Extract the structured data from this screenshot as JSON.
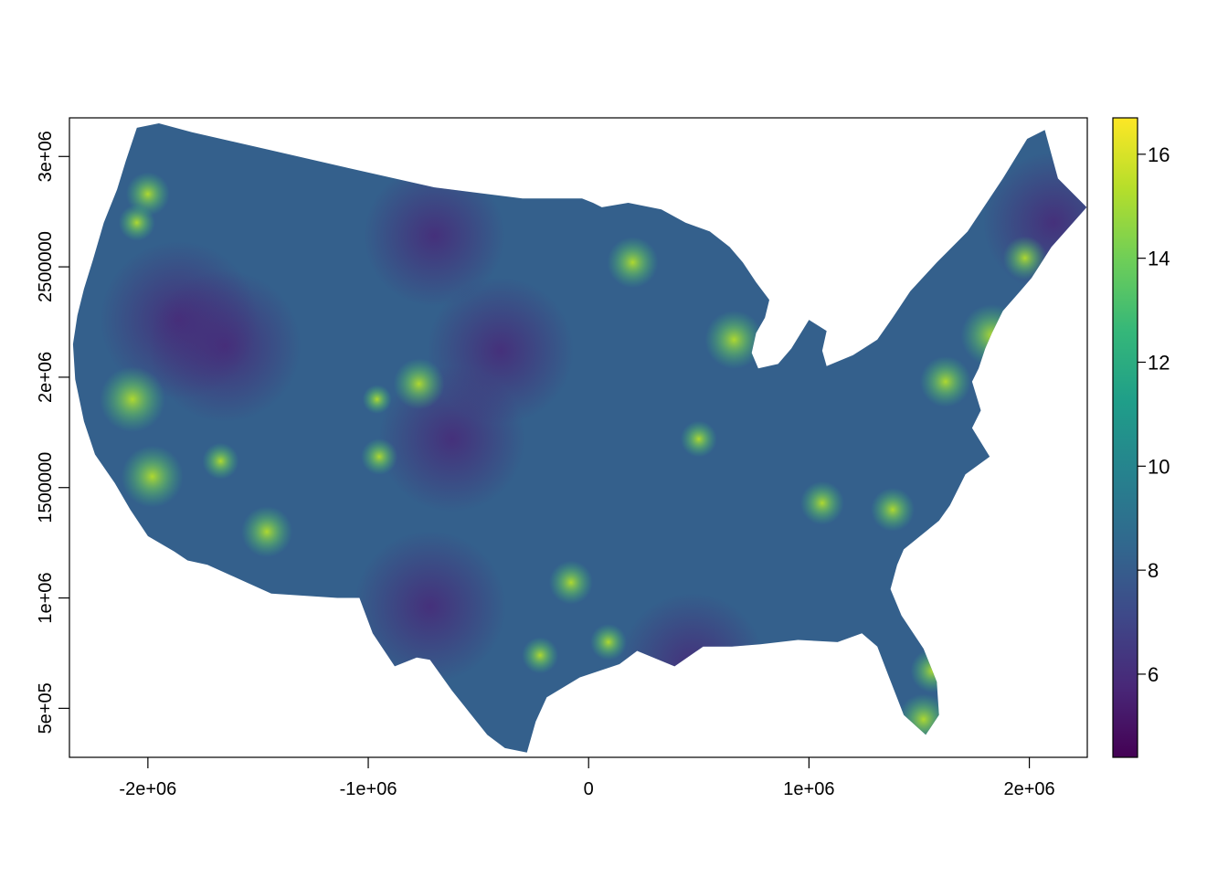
{
  "map": {
    "type": "raster",
    "extent": {
      "x": [
        -2356000,
        2263000
      ],
      "y": [
        278000,
        3175000
      ]
    },
    "x_ticks": [
      {
        "value": -2000000,
        "label": "-2e+06"
      },
      {
        "value": -1000000,
        "label": "-1e+06"
      },
      {
        "value": 0,
        "label": "0"
      },
      {
        "value": 1000000,
        "label": "1e+06"
      },
      {
        "value": 2000000,
        "label": "2e+06"
      }
    ],
    "y_ticks": [
      {
        "value": 500000,
        "label": "5e+05"
      },
      {
        "value": 1000000,
        "label": "1e+06"
      },
      {
        "value": 1500000,
        "label": "1500000"
      },
      {
        "value": 2000000,
        "label": "2e+06"
      },
      {
        "value": 2500000,
        "label": "2500000"
      },
      {
        "value": 3000000,
        "label": "3e+06"
      }
    ],
    "boundary_km": [
      [
        -2050,
        3130
      ],
      [
        -1950,
        3150
      ],
      [
        -1800,
        3110
      ],
      [
        -1450,
        3030
      ],
      [
        -1100,
        2950
      ],
      [
        -700,
        2860
      ],
      [
        -300,
        2810
      ],
      [
        -30,
        2810
      ],
      [
        20,
        2790
      ],
      [
        60,
        2770
      ],
      [
        180,
        2790
      ],
      [
        330,
        2760
      ],
      [
        440,
        2700
      ],
      [
        550,
        2660
      ],
      [
        640,
        2590
      ],
      [
        700,
        2520
      ],
      [
        760,
        2430
      ],
      [
        820,
        2350
      ],
      [
        800,
        2270
      ],
      [
        760,
        2200
      ],
      [
        740,
        2110
      ],
      [
        770,
        2040
      ],
      [
        860,
        2060
      ],
      [
        920,
        2130
      ],
      [
        1000,
        2260
      ],
      [
        1080,
        2210
      ],
      [
        1060,
        2120
      ],
      [
        1080,
        2050
      ],
      [
        1200,
        2100
      ],
      [
        1310,
        2170
      ],
      [
        1380,
        2270
      ],
      [
        1460,
        2390
      ],
      [
        1580,
        2520
      ],
      [
        1620,
        2560
      ],
      [
        1720,
        2660
      ],
      [
        1800,
        2780
      ],
      [
        1880,
        2900
      ],
      [
        1990,
        3080
      ],
      [
        2070,
        3120
      ],
      [
        2130,
        2900
      ],
      [
        2260,
        2770
      ],
      [
        2100,
        2590
      ],
      [
        2010,
        2450
      ],
      [
        1950,
        2380
      ],
      [
        1880,
        2300
      ],
      [
        1830,
        2200
      ],
      [
        1800,
        2130
      ],
      [
        1770,
        2040
      ],
      [
        1740,
        1980
      ],
      [
        1780,
        1850
      ],
      [
        1740,
        1770
      ],
      [
        1820,
        1640
      ],
      [
        1710,
        1560
      ],
      [
        1640,
        1420
      ],
      [
        1590,
        1350
      ],
      [
        1430,
        1220
      ],
      [
        1400,
        1150
      ],
      [
        1370,
        1040
      ],
      [
        1420,
        920
      ],
      [
        1520,
        770
      ],
      [
        1580,
        620
      ],
      [
        1590,
        470
      ],
      [
        1530,
        380
      ],
      [
        1430,
        470
      ],
      [
        1360,
        650
      ],
      [
        1310,
        780
      ],
      [
        1240,
        840
      ],
      [
        1130,
        800
      ],
      [
        950,
        810
      ],
      [
        780,
        790
      ],
      [
        650,
        780
      ],
      [
        520,
        780
      ],
      [
        390,
        690
      ],
      [
        220,
        760
      ],
      [
        140,
        700
      ],
      [
        -40,
        640
      ],
      [
        -190,
        550
      ],
      [
        -240,
        440
      ],
      [
        -280,
        300
      ],
      [
        -380,
        320
      ],
      [
        -460,
        380
      ],
      [
        -540,
        480
      ],
      [
        -620,
        580
      ],
      [
        -720,
        720
      ],
      [
        -780,
        730
      ],
      [
        -880,
        690
      ],
      [
        -980,
        840
      ],
      [
        -1040,
        1000
      ],
      [
        -1140,
        1000
      ],
      [
        -1440,
        1020
      ],
      [
        -1730,
        1150
      ],
      [
        -1820,
        1170
      ],
      [
        -1880,
        1210
      ],
      [
        -2000,
        1280
      ],
      [
        -2080,
        1400
      ],
      [
        -2150,
        1520
      ],
      [
        -2240,
        1650
      ],
      [
        -2290,
        1800
      ],
      [
        -2330,
        1990
      ],
      [
        -2340,
        2150
      ],
      [
        -2320,
        2280
      ],
      [
        -2290,
        2400
      ],
      [
        -2250,
        2530
      ],
      [
        -2200,
        2700
      ],
      [
        -2140,
        2850
      ],
      [
        -2100,
        2980
      ]
    ],
    "hotspots": [
      {
        "x": -2070,
        "y": 1900,
        "value": 16
      },
      {
        "x": -1980,
        "y": 1550,
        "value": 15.5
      },
      {
        "x": -1460,
        "y": 1300,
        "value": 14
      },
      {
        "x": -1670,
        "y": 1620,
        "value": 12
      },
      {
        "x": -2000,
        "y": 2830,
        "value": 13
      },
      {
        "x": -2050,
        "y": 2700,
        "value": 12
      },
      {
        "x": -770,
        "y": 1970,
        "value": 14
      },
      {
        "x": -950,
        "y": 1640,
        "value": 12
      },
      {
        "x": -960,
        "y": 1900,
        "value": 11
      },
      {
        "x": 200,
        "y": 2520,
        "value": 14
      },
      {
        "x": 660,
        "y": 2170,
        "value": 15
      },
      {
        "x": 1830,
        "y": 2190,
        "value": 15.5
      },
      {
        "x": 1620,
        "y": 1980,
        "value": 14
      },
      {
        "x": 1980,
        "y": 2540,
        "value": 13
      },
      {
        "x": -80,
        "y": 1070,
        "value": 13
      },
      {
        "x": -220,
        "y": 740,
        "value": 12
      },
      {
        "x": 90,
        "y": 800,
        "value": 12
      },
      {
        "x": 500,
        "y": 1720,
        "value": 12
      },
      {
        "x": 1060,
        "y": 1430,
        "value": 13
      },
      {
        "x": 1380,
        "y": 1400,
        "value": 13
      },
      {
        "x": 1520,
        "y": 450,
        "value": 14
      },
      {
        "x": 1560,
        "y": 670,
        "value": 13
      }
    ],
    "lowspots": [
      {
        "x": -1860,
        "y": 2260,
        "value": 5
      },
      {
        "x": -1650,
        "y": 2140,
        "value": 5.5
      },
      {
        "x": -720,
        "y": 960,
        "value": 5.5
      },
      {
        "x": -620,
        "y": 1720,
        "value": 6
      },
      {
        "x": -400,
        "y": 2120,
        "value": 6
      },
      {
        "x": -700,
        "y": 2640,
        "value": 6.5
      },
      {
        "x": 2110,
        "y": 2700,
        "value": 6.5
      },
      {
        "x": 470,
        "y": 690,
        "value": 6
      }
    ],
    "colorbar": {
      "min": 4.4,
      "max": 16.7,
      "ticks": [
        6,
        8,
        10,
        12,
        14,
        16
      ],
      "colors": [
        "#440154",
        "#482878",
        "#3e4989",
        "#31688e",
        "#26828e",
        "#1f9e89",
        "#35b779",
        "#6ece58",
        "#b5de2b",
        "#fde725"
      ]
    }
  }
}
